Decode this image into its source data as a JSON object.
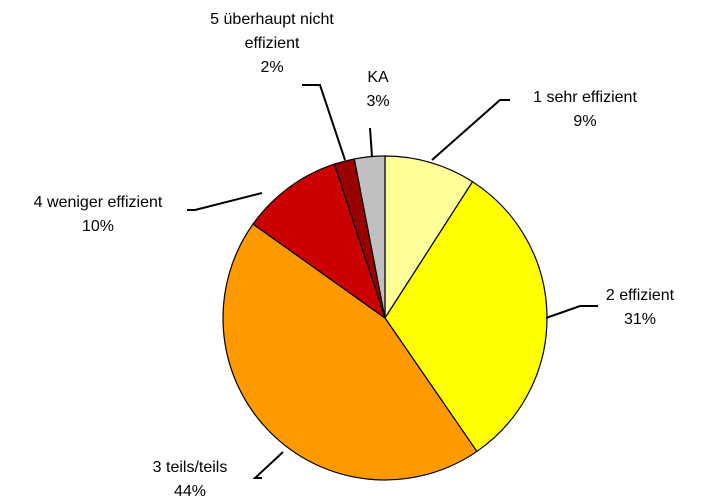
{
  "chart_data": {
    "type": "pie",
    "categories": [
      "1 sehr effizient",
      "2 effizient",
      "3 teils/teils",
      "4 weniger effizient",
      "5 überhaupt nicht effizient",
      "KA"
    ],
    "values": [
      9,
      31,
      44,
      10,
      2,
      3
    ],
    "value_labels": [
      "9%",
      "31%",
      "44%",
      "10%",
      "2%",
      "3%"
    ],
    "colors": [
      "#FFFF99",
      "#FFFF00",
      "#FF9900",
      "#CC0000",
      "#990000",
      "#C0C0C0"
    ]
  }
}
